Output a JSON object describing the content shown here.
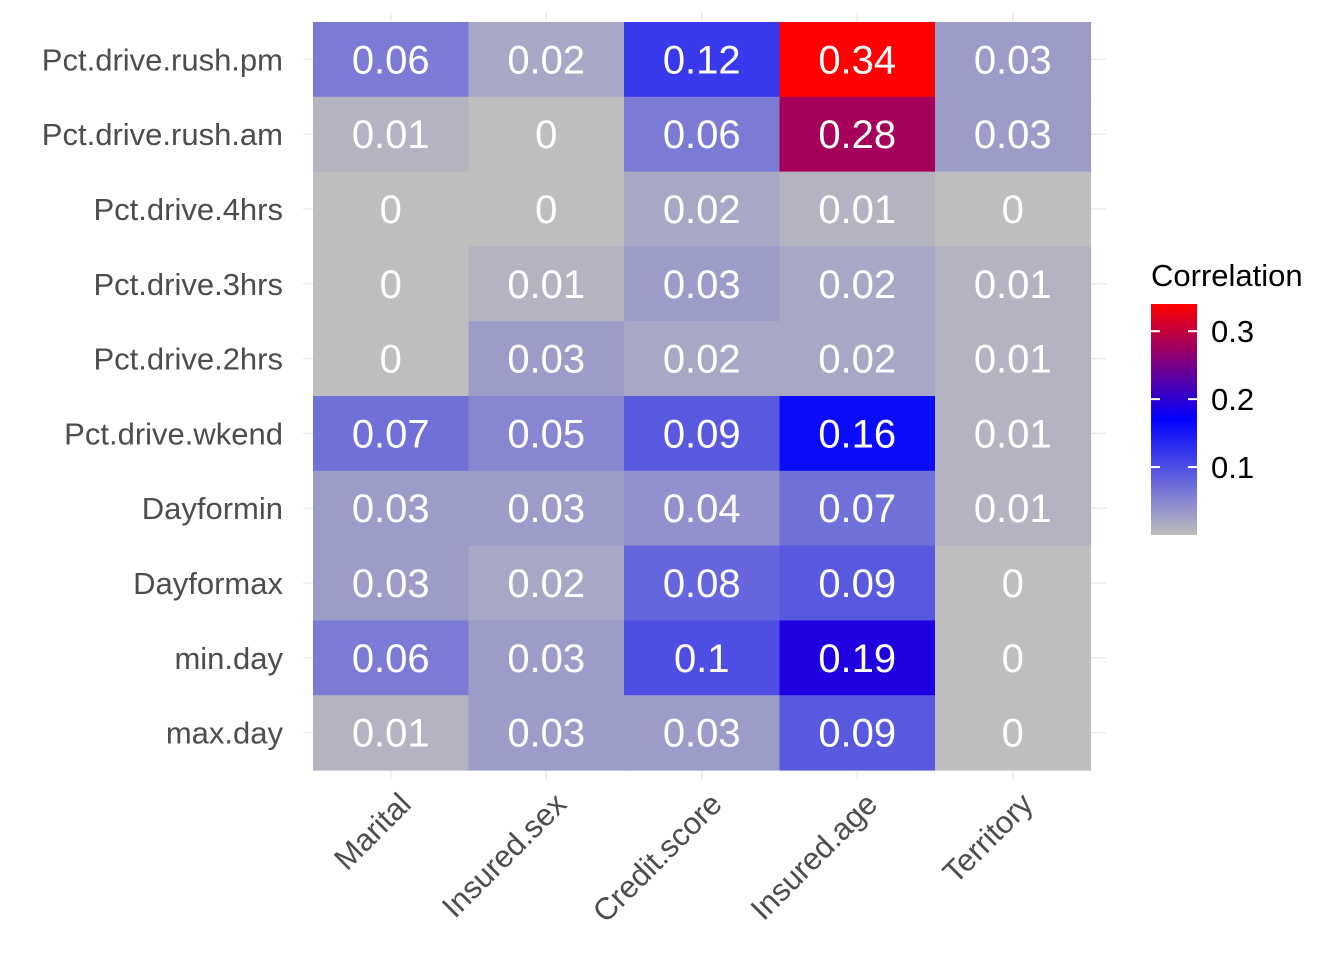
{
  "chart_data": {
    "type": "heatmap",
    "title": "",
    "xlabel": "",
    "ylabel": "",
    "x_categories": [
      "Marital",
      "Insured.sex",
      "Credit.score",
      "Insured.age",
      "Territory"
    ],
    "y_categories": [
      "Pct.drive.rush.pm",
      "Pct.drive.rush.am",
      "Pct.drive.4hrs",
      "Pct.drive.3hrs",
      "Pct.drive.2hrs",
      "Pct.drive.wkend",
      "Dayformin",
      "Dayformax",
      "min.day",
      "max.day"
    ],
    "values": [
      [
        0.06,
        0.02,
        0.12,
        0.34,
        0.03
      ],
      [
        0.01,
        0,
        0.06,
        0.28,
        0.03
      ],
      [
        0,
        0,
        0.02,
        0.01,
        0
      ],
      [
        0,
        0.01,
        0.03,
        0.02,
        0.01
      ],
      [
        0,
        0.03,
        0.02,
        0.02,
        0.01
      ],
      [
        0.07,
        0.05,
        0.09,
        0.16,
        0.01
      ],
      [
        0.03,
        0.03,
        0.04,
        0.07,
        0.01
      ],
      [
        0.03,
        0.02,
        0.08,
        0.09,
        0
      ],
      [
        0.06,
        0.03,
        0.1,
        0.19,
        0
      ],
      [
        0.01,
        0.03,
        0.03,
        0.09,
        0
      ]
    ],
    "labels": [
      [
        "0.06",
        "0.02",
        "0.12",
        "0.34",
        "0.03"
      ],
      [
        "0.01",
        "0",
        "0.06",
        "0.28",
        "0.03"
      ],
      [
        "0",
        "0",
        "0.02",
        "0.01",
        "0"
      ],
      [
        "0",
        "0.01",
        "0.03",
        "0.02",
        "0.01"
      ],
      [
        "0",
        "0.03",
        "0.02",
        "0.02",
        "0.01"
      ],
      [
        "0.07",
        "0.05",
        "0.09",
        "0.16",
        "0.01"
      ],
      [
        "0.03",
        "0.03",
        "0.04",
        "0.07",
        "0.01"
      ],
      [
        "0.03",
        "0.02",
        "0.08",
        "0.09",
        "0"
      ],
      [
        "0.06",
        "0.03",
        "0.1",
        "0.19",
        "0"
      ],
      [
        "0.01",
        "0.03",
        "0.03",
        "0.09",
        "0"
      ]
    ],
    "legend": {
      "title": "Correlation",
      "position": "right",
      "ticks": [
        0.1,
        0.2,
        0.3
      ],
      "tick_labels": [
        "0.1",
        "0.2",
        "0.3"
      ],
      "range": [
        0,
        0.34
      ]
    },
    "colorscale": {
      "low": "#bebebe",
      "mid": "#0000ff",
      "high": "#ff0000",
      "midpoint": 0.17
    },
    "grid": true
  }
}
